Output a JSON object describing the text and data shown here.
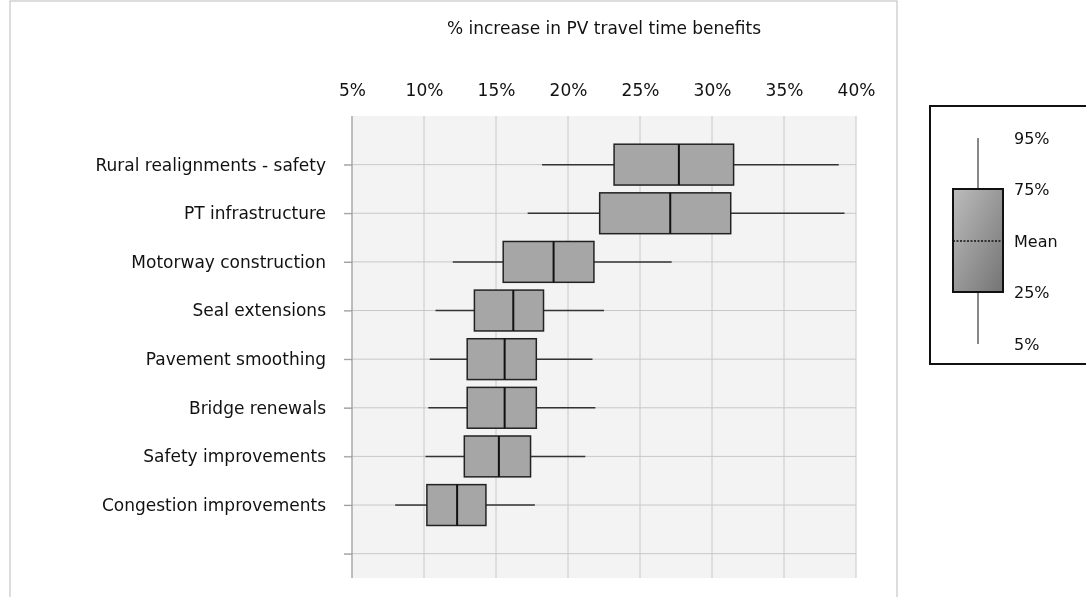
{
  "chart_data": {
    "type": "box",
    "orientation": "horizontal",
    "xlabel": "% increase in PV travel time benefits",
    "categories": [
      "Rural realignments - safety",
      "PT infrastructure",
      "Motorway construction",
      "Seal extensions",
      "Pavement smoothing",
      "Bridge renewals",
      "Safety improvements",
      "Congestion improvements",
      null
    ],
    "color": "#a6a6a6",
    "boxes": [
      {
        "low": 18.2,
        "q1": 23.2,
        "median": null,
        "mean": 27.7,
        "q3": 31.5,
        "high": 38.8
      },
      {
        "low": 17.2,
        "q1": 22.2,
        "median": null,
        "mean": 27.1,
        "q3": 31.3,
        "high": 39.2
      },
      {
        "low": 12.0,
        "q1": 15.5,
        "median": null,
        "mean": 19.0,
        "q3": 21.8,
        "high": 27.2
      },
      {
        "low": 10.8,
        "q1": 13.5,
        "median": null,
        "mean": 16.2,
        "q3": 18.3,
        "high": 22.5
      },
      {
        "low": 10.4,
        "q1": 13.0,
        "median": null,
        "mean": 15.6,
        "q3": 17.8,
        "high": 21.7
      },
      {
        "low": 10.3,
        "q1": 13.0,
        "median": null,
        "mean": 15.6,
        "q3": 17.8,
        "high": 21.9
      },
      {
        "low": 10.1,
        "q1": 12.8,
        "median": null,
        "mean": 15.2,
        "q3": 17.4,
        "high": 21.2
      },
      {
        "low": 8.0,
        "q1": 10.2,
        "median": null,
        "mean": 12.3,
        "q3": 14.3,
        "high": 17.7
      },
      null
    ],
    "xlim": [
      5,
      40
    ],
    "xticks": [
      {
        "value": 5,
        "label": "5%"
      },
      {
        "value": 10,
        "label": "10%"
      },
      {
        "value": 15,
        "label": "15%"
      },
      {
        "value": 20,
        "label": "20%"
      },
      {
        "value": 25,
        "label": "25%"
      },
      {
        "value": 30,
        "label": "30%"
      },
      {
        "value": 35,
        "label": "35%"
      },
      {
        "value": 40,
        "label": "40%"
      }
    ],
    "grid": true,
    "annotations": [
      "95%",
      "75%",
      "Mean",
      "25%",
      "5%"
    ]
  }
}
